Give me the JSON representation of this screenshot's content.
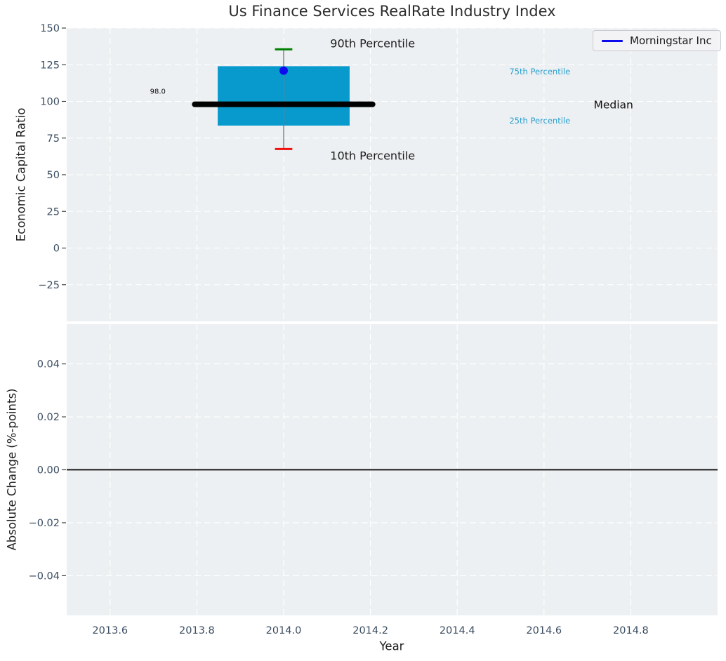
{
  "title": "Us Finance Services RealRate Industry Index",
  "legend": {
    "label": "Morningstar Inc",
    "line_color": "#0b0bee"
  },
  "colors": {
    "plot_bg": "#edf0f2",
    "grid": "#ffffff",
    "box_fill": "#099acd",
    "median_line": "#000000",
    "whisker_line": "#777777",
    "cap_90": "#008000",
    "cap_10": "#f01010",
    "marker": "#0b0bee",
    "tick_label": "#3b4d61",
    "tick_mark": "#444444",
    "text_dark": "#1a1a1a",
    "cyan_text": "#299fce",
    "zero_line": "#000000"
  },
  "chart_data": [
    {
      "type": "box-whisker",
      "panel": "economic-capital-ratio",
      "ylabel": "Economic Capital Ratio",
      "xlim": [
        2013.5,
        2015.0
      ],
      "ylim": [
        -50,
        150
      ],
      "grid": "dashed-white",
      "xticks": [
        {
          "v": 2013.6,
          "label": "2013.6"
        },
        {
          "v": 2013.8,
          "label": "2013.8"
        },
        {
          "v": 2014.0,
          "label": "2014.0"
        },
        {
          "v": 2014.2,
          "label": "2014.2"
        },
        {
          "v": 2014.4,
          "label": "2014.4"
        },
        {
          "v": 2014.6,
          "label": "2014.6"
        },
        {
          "v": 2014.8,
          "label": "2014.8"
        }
      ],
      "yticks": [
        {
          "v": 150,
          "label": "150"
        },
        {
          "v": 125,
          "label": "125"
        },
        {
          "v": 100,
          "label": "100"
        },
        {
          "v": 75,
          "label": "75"
        },
        {
          "v": 50,
          "label": "50"
        },
        {
          "v": 25,
          "label": "25"
        },
        {
          "v": 0,
          "label": "0"
        },
        {
          "v": -25,
          "label": "−25"
        }
      ],
      "x_center": 2014.0,
      "box": {
        "q25": 83.5,
        "q75": 124.0,
        "half_width": 0.152
      },
      "median": {
        "value": 98.0,
        "half_span": 0.205,
        "label": "98.0"
      },
      "whiskers": {
        "p10": 67.5,
        "p90": 135.5,
        "cap_half_width": 0.02
      },
      "marker": {
        "series": "Morningstar Inc",
        "x": 2014.0,
        "y": 121.0
      },
      "annotations": [
        {
          "id": "label-90th-percentile",
          "text": "90th Percentile",
          "x": 2014.205,
          "y": 139.5,
          "color": "#1a1a1a",
          "size": 16,
          "anchor": "middle"
        },
        {
          "id": "label-10th-percentile",
          "text": "10th Percentile",
          "x": 2014.205,
          "y": 63.0,
          "color": "#1a1a1a",
          "size": 16,
          "anchor": "middle"
        },
        {
          "id": "label-75th-percentile",
          "text": "75th Percentile",
          "x": 2014.52,
          "y": 120.5,
          "color": "#299fce",
          "size": 11.5,
          "anchor": "start"
        },
        {
          "id": "label-25th-percentile",
          "text": "25th Percentile",
          "x": 2014.52,
          "y": 87.0,
          "color": "#299fce",
          "size": 11.5,
          "anchor": "start"
        },
        {
          "id": "label-median",
          "text": "Median",
          "x": 2014.76,
          "y": 98.0,
          "color": "#111111",
          "size": 15.5,
          "anchor": "middle"
        },
        {
          "id": "label-median-value",
          "text": "98.0",
          "x": 2013.71,
          "y": 107.0,
          "color": "#111111",
          "size": 10,
          "anchor": "middle"
        }
      ]
    },
    {
      "type": "line",
      "panel": "absolute-change",
      "ylabel": "Absolute Change (%-points)",
      "xlabel": "Year",
      "xlim": [
        2013.5,
        2015.0
      ],
      "ylim": [
        -0.055,
        0.055
      ],
      "grid": "dashed-white",
      "xticks": [
        {
          "v": 2013.6,
          "label": "2013.6"
        },
        {
          "v": 2013.8,
          "label": "2013.8"
        },
        {
          "v": 2014.0,
          "label": "2014.0"
        },
        {
          "v": 2014.2,
          "label": "2014.2"
        },
        {
          "v": 2014.4,
          "label": "2014.4"
        },
        {
          "v": 2014.6,
          "label": "2014.6"
        },
        {
          "v": 2014.8,
          "label": "2014.8"
        }
      ],
      "yticks": [
        {
          "v": 0.04,
          "label": "0.04"
        },
        {
          "v": 0.02,
          "label": "0.02"
        },
        {
          "v": 0.0,
          "label": "0.00"
        },
        {
          "v": -0.02,
          "label": "−0.02"
        },
        {
          "v": -0.04,
          "label": "−0.04"
        }
      ],
      "zero_line": {
        "y": 0.0
      }
    }
  ]
}
